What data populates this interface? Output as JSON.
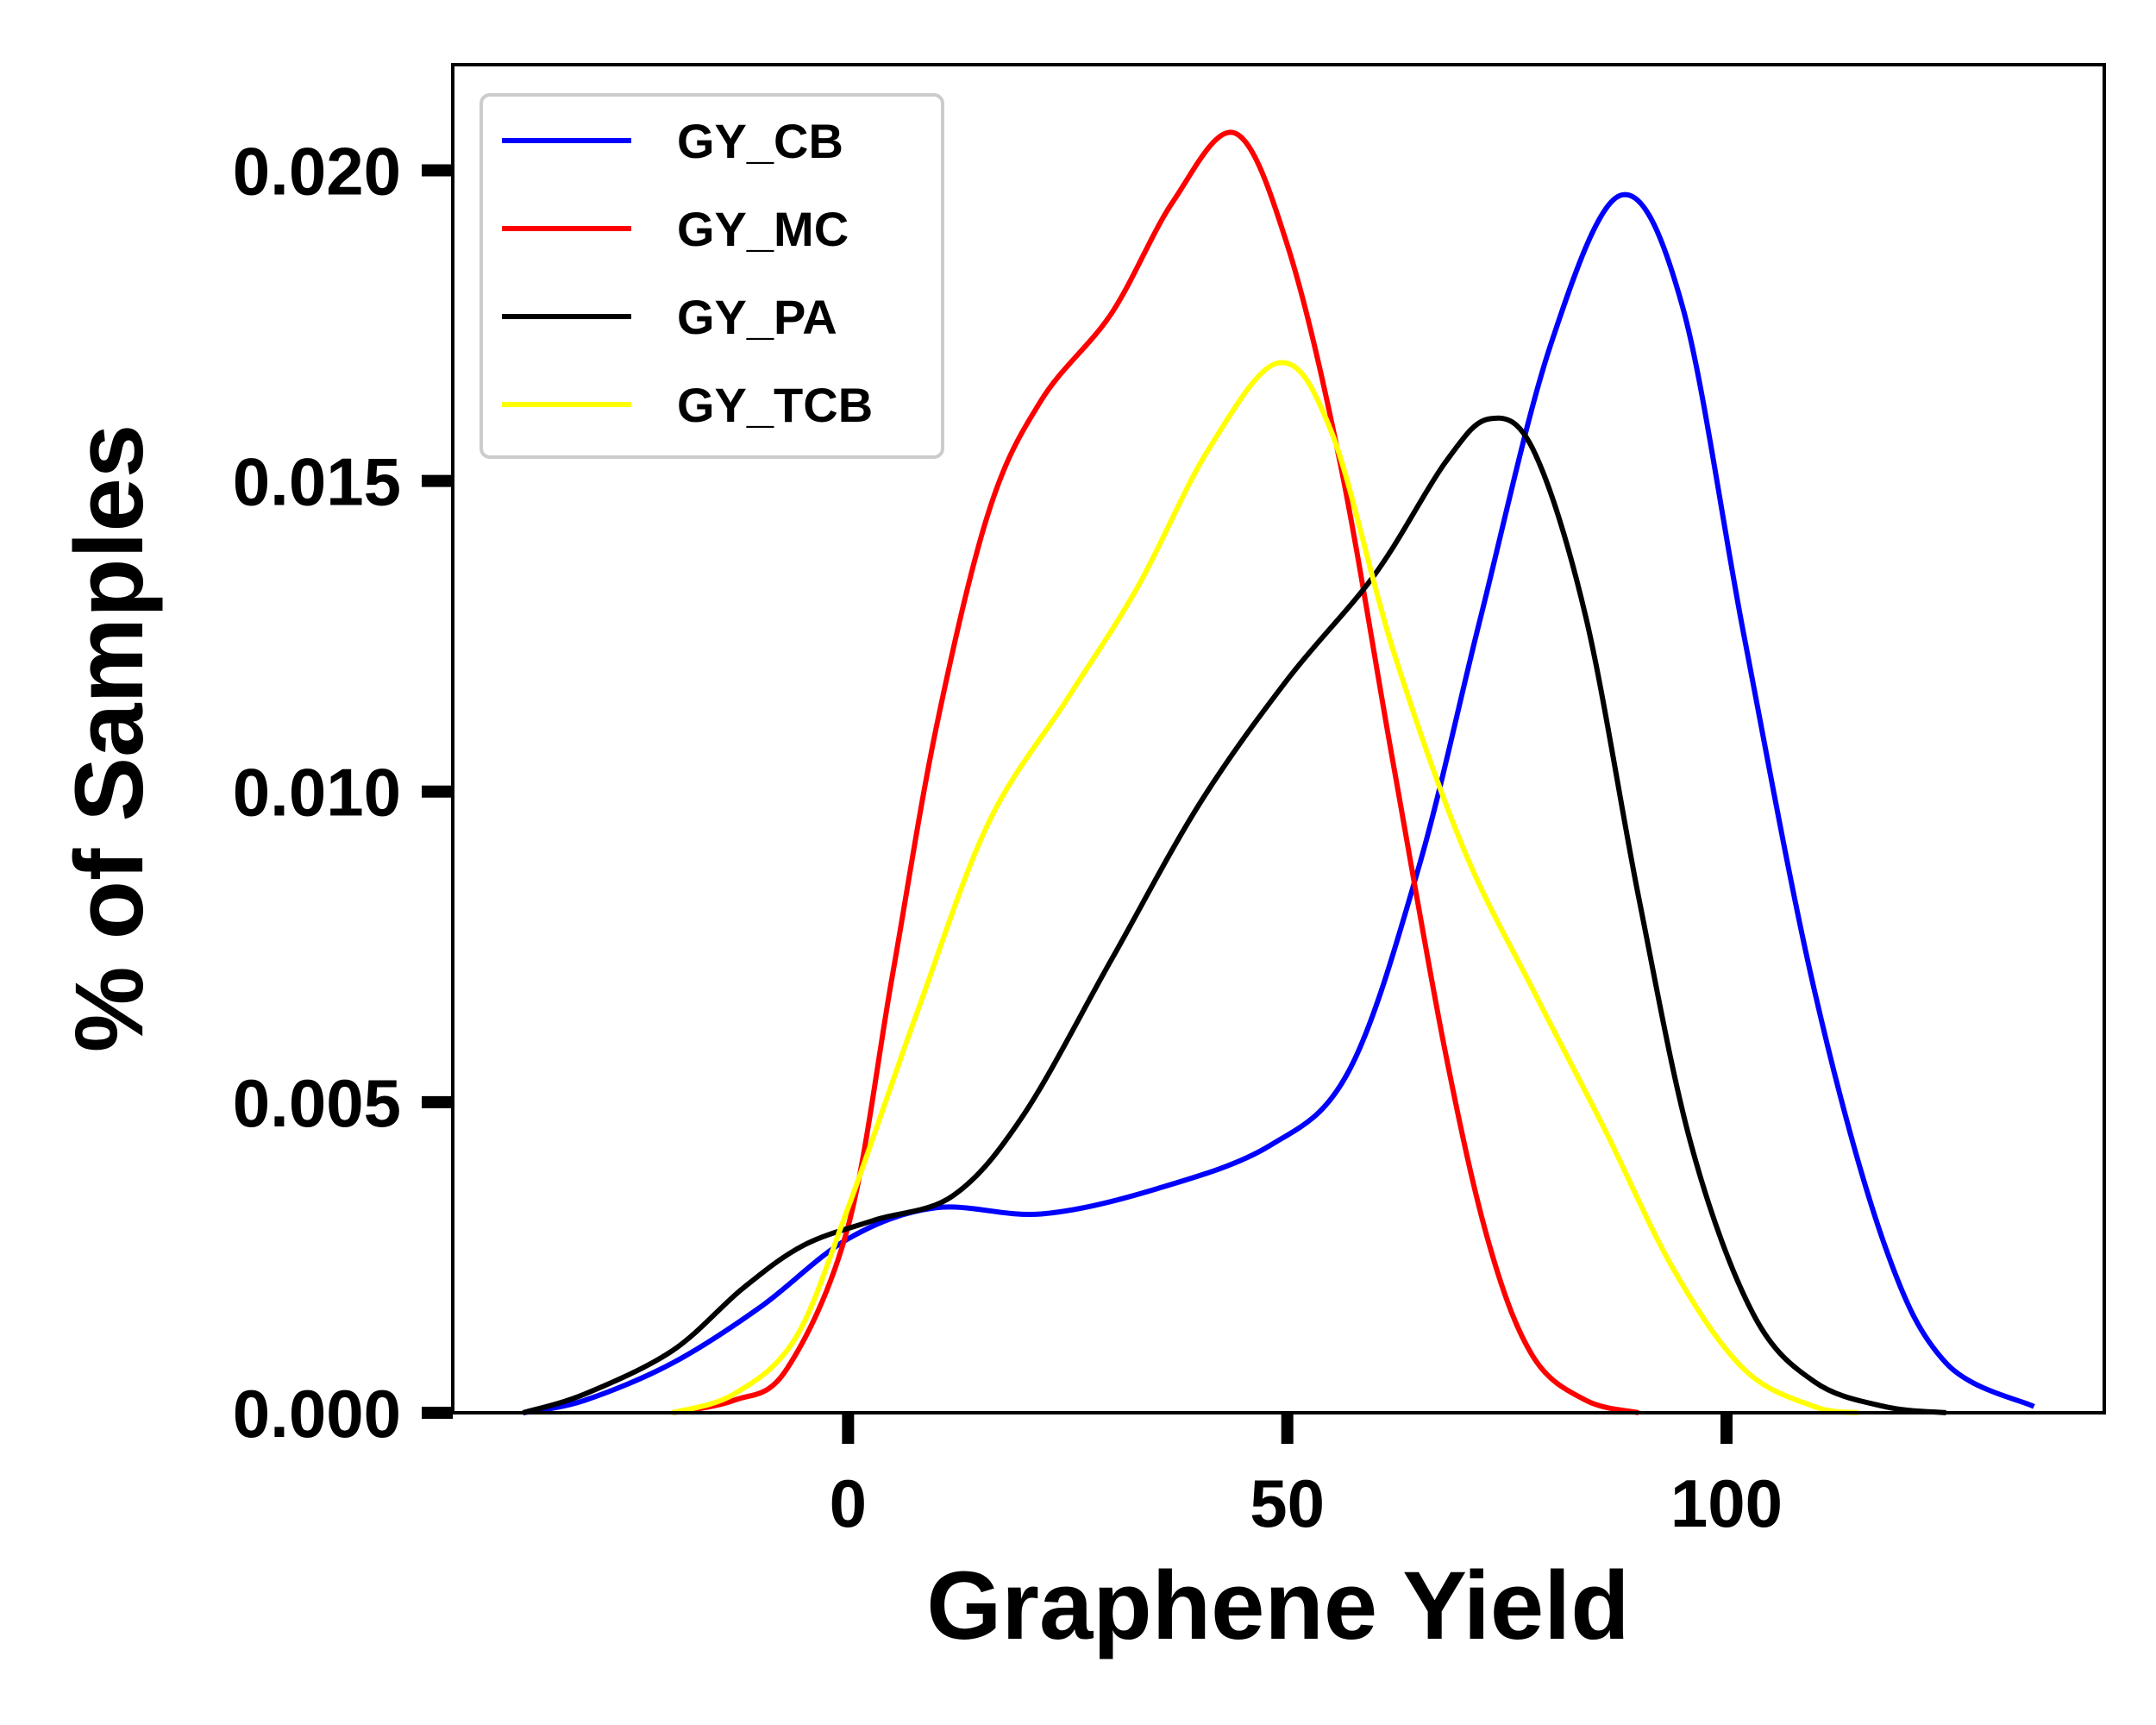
{
  "chart_data": {
    "type": "line",
    "title": "",
    "xlabel": "Graphene Yield",
    "ylabel": "% of Samples",
    "xlim": [
      -45,
      143
    ],
    "ylim": [
      0,
      0.0217
    ],
    "xticks": [
      0,
      50,
      100
    ],
    "xtick_labels": [
      "0",
      "50",
      "100"
    ],
    "yticks": [
      0.0,
      0.005,
      0.01,
      0.015,
      0.02
    ],
    "ytick_labels": [
      "0.000",
      "0.005",
      "0.010",
      "0.015",
      "0.020"
    ],
    "grid": false,
    "legend_position": "top-left",
    "series": [
      {
        "name": "GY_CB",
        "color": "#0000ff",
        "points": [
          [
            -37,
            0.0
          ],
          [
            -30,
            0.0002
          ],
          [
            -20,
            0.0008
          ],
          [
            -10,
            0.0017
          ],
          [
            0,
            0.0028
          ],
          [
            10,
            0.0033
          ],
          [
            22,
            0.0032
          ],
          [
            35,
            0.0036
          ],
          [
            48,
            0.0043
          ],
          [
            57,
            0.0055
          ],
          [
            65,
            0.0088
          ],
          [
            72,
            0.0128
          ],
          [
            80,
            0.0172
          ],
          [
            88,
            0.0196
          ],
          [
            95,
            0.0178
          ],
          [
            102,
            0.0125
          ],
          [
            110,
            0.0068
          ],
          [
            118,
            0.0027
          ],
          [
            125,
            0.0008
          ],
          [
            135,
            0.0001
          ]
        ]
      },
      {
        "name": "GY_MC",
        "color": "#ff0000",
        "points": [
          [
            -20,
            0.0
          ],
          [
            -13,
            0.0002
          ],
          [
            -7,
            0.0007
          ],
          [
            0,
            0.003
          ],
          [
            5,
            0.007
          ],
          [
            10,
            0.011
          ],
          [
            16,
            0.0145
          ],
          [
            22,
            0.0163
          ],
          [
            30,
            0.0177
          ],
          [
            37,
            0.0195
          ],
          [
            44,
            0.0206
          ],
          [
            50,
            0.0188
          ],
          [
            56,
            0.0153
          ],
          [
            62,
            0.0105
          ],
          [
            68,
            0.0058
          ],
          [
            73,
            0.0027
          ],
          [
            78,
            0.0009
          ],
          [
            84,
            0.0002
          ],
          [
            90,
            0.0
          ]
        ]
      },
      {
        "name": "GY_PA",
        "color": "#000000",
        "points": [
          [
            -37,
            0.0
          ],
          [
            -30,
            0.0003
          ],
          [
            -20,
            0.001
          ],
          [
            -12,
            0.002
          ],
          [
            -5,
            0.0027
          ],
          [
            3,
            0.0031
          ],
          [
            12,
            0.0035
          ],
          [
            20,
            0.0048
          ],
          [
            30,
            0.0073
          ],
          [
            40,
            0.0098
          ],
          [
            50,
            0.0118
          ],
          [
            60,
            0.0135
          ],
          [
            68,
            0.0153
          ],
          [
            73,
            0.016
          ],
          [
            78,
            0.0155
          ],
          [
            84,
            0.0128
          ],
          [
            90,
            0.0083
          ],
          [
            96,
            0.0043
          ],
          [
            103,
            0.0016
          ],
          [
            110,
            0.0005
          ],
          [
            118,
            0.0001
          ],
          [
            125,
            0.0
          ]
        ]
      },
      {
        "name": "GY_TCB",
        "color": "#ffff00",
        "points": [
          [
            -20,
            0.0
          ],
          [
            -13,
            0.0003
          ],
          [
            -6,
            0.0012
          ],
          [
            0,
            0.0033
          ],
          [
            8,
            0.0065
          ],
          [
            16,
            0.0095
          ],
          [
            25,
            0.0115
          ],
          [
            33,
            0.0133
          ],
          [
            41,
            0.0155
          ],
          [
            49,
            0.0169
          ],
          [
            55,
            0.0158
          ],
          [
            62,
            0.0123
          ],
          [
            70,
            0.0091
          ],
          [
            78,
            0.0068
          ],
          [
            86,
            0.0046
          ],
          [
            94,
            0.0023
          ],
          [
            102,
            0.0007
          ],
          [
            110,
            0.0001
          ],
          [
            115,
            0.0
          ]
        ]
      }
    ]
  }
}
